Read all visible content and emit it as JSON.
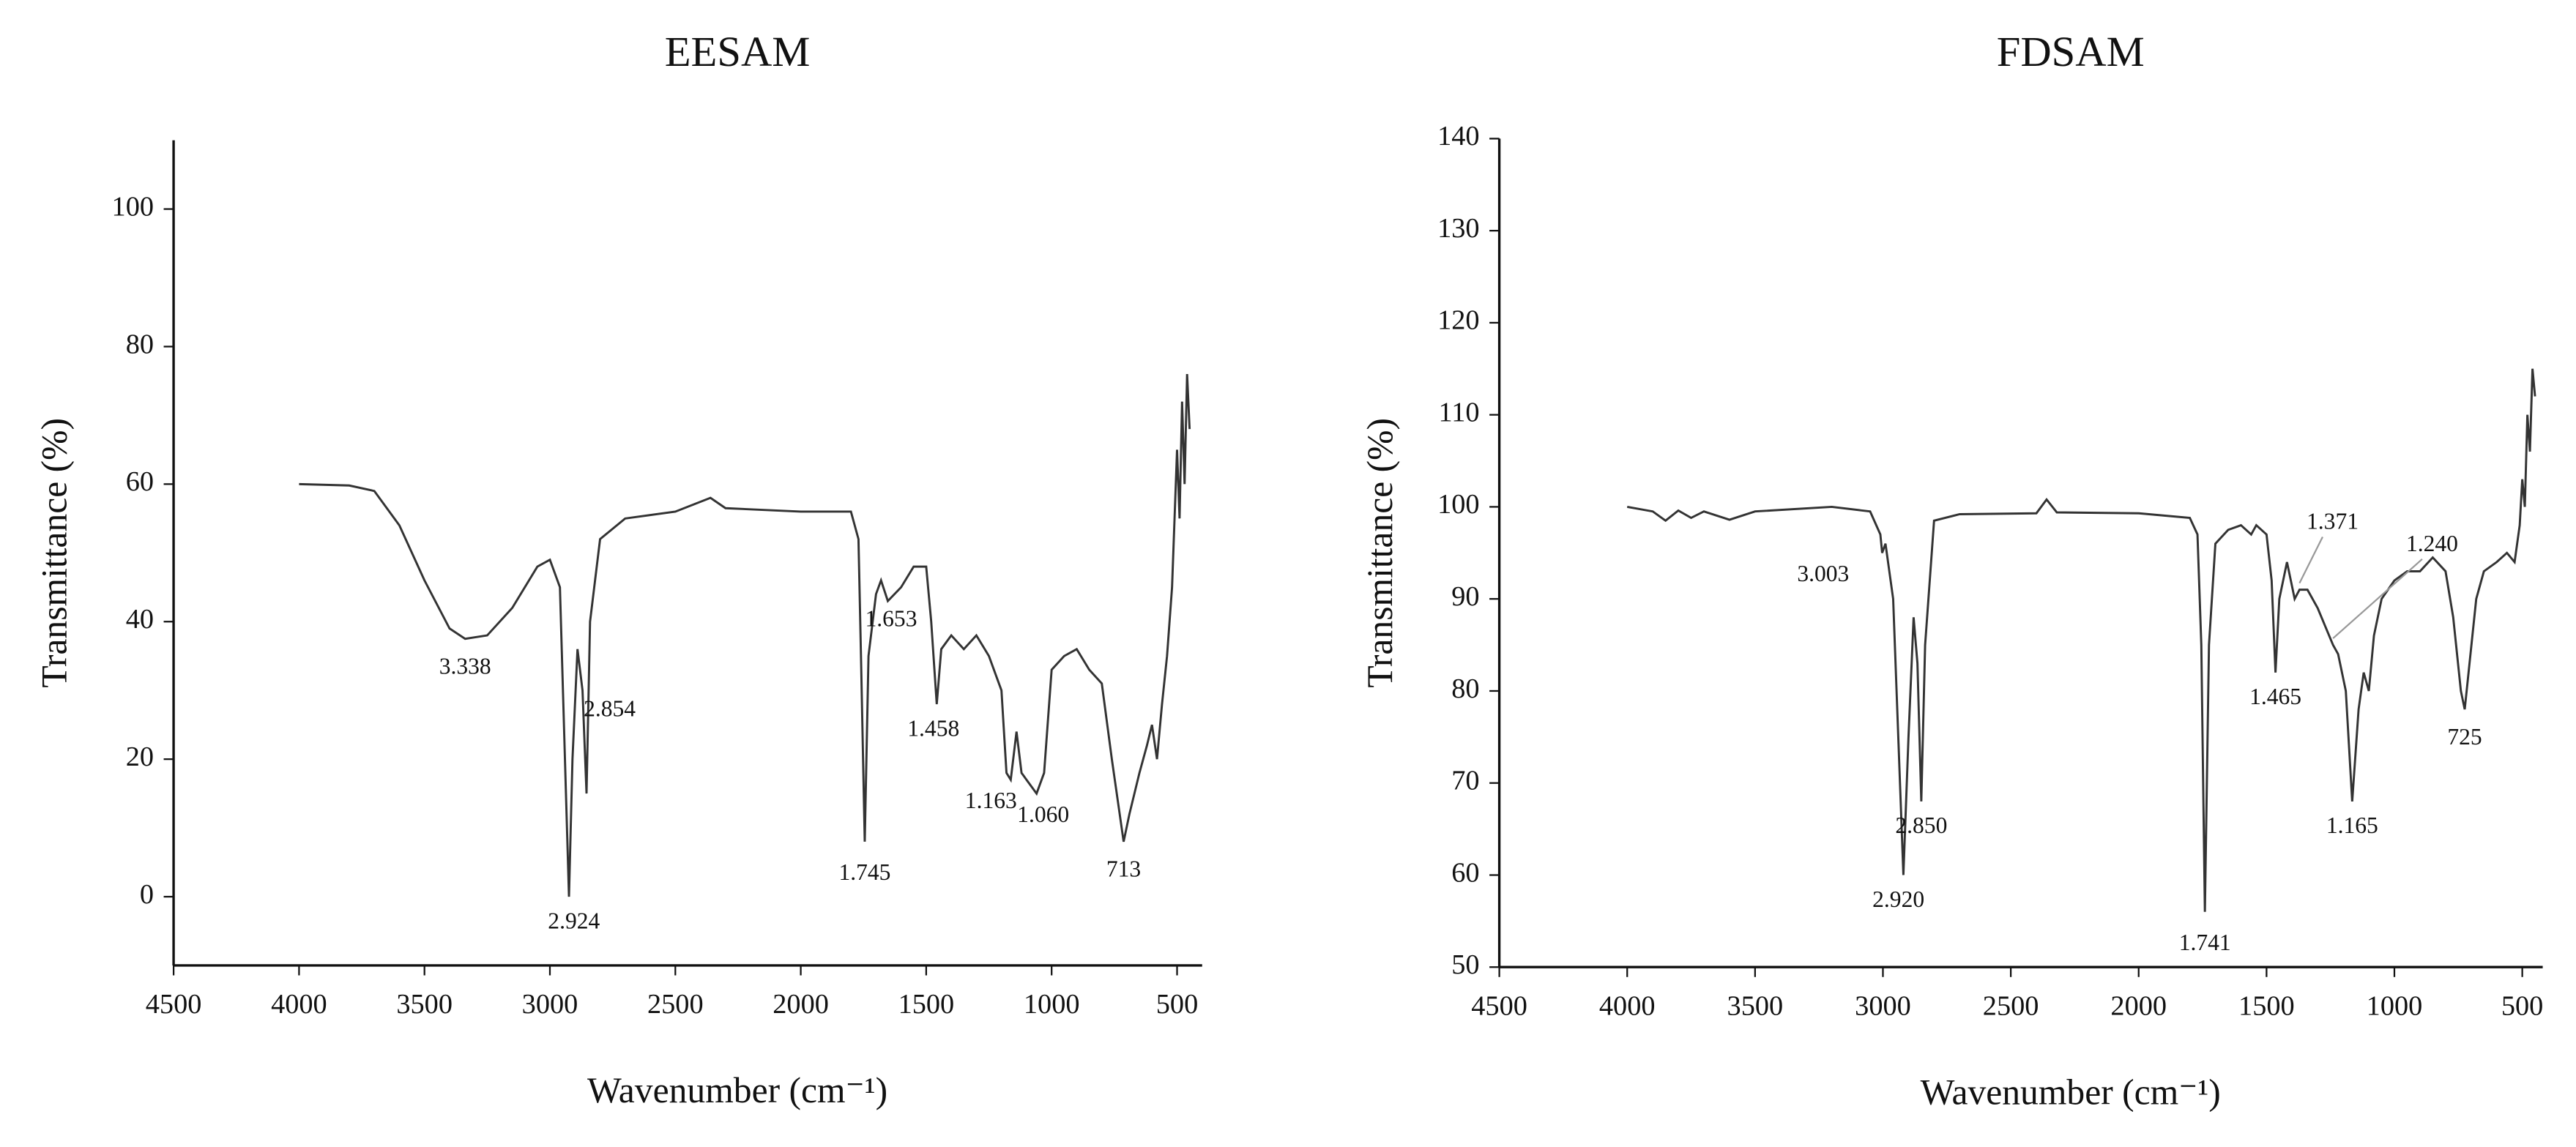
{
  "chart_data": [
    {
      "type": "line",
      "title": "EESAM",
      "x_label": "Wavenumber (cm⁻¹)",
      "y_label": "Transmittance (%)",
      "xlim": [
        4500,
        400
      ],
      "ylim": [
        -10,
        110
      ],
      "xticks": [
        4500,
        4000,
        3500,
        3000,
        2500,
        2000,
        1500,
        1000,
        500
      ],
      "yticks": [
        0,
        20,
        40,
        60,
        80,
        100
      ],
      "series": [
        {
          "name": "EESAM",
          "color": "#333333",
          "x": [
            4000,
            3800,
            3700,
            3600,
            3500,
            3400,
            3338,
            3250,
            3150,
            3050,
            3000,
            2980,
            2960,
            2940,
            2924,
            2910,
            2890,
            2870,
            2854,
            2840,
            2800,
            2700,
            2500,
            2360,
            2300,
            2000,
            1800,
            1770,
            1760,
            1745,
            1730,
            1700,
            1680,
            1653,
            1600,
            1550,
            1500,
            1480,
            1458,
            1440,
            1400,
            1350,
            1300,
            1250,
            1200,
            1180,
            1163,
            1140,
            1120,
            1100,
            1060,
            1030,
            1000,
            950,
            900,
            850,
            800,
            760,
            713,
            690,
            650,
            620,
            600,
            580,
            560,
            540,
            520,
            500,
            490,
            480,
            470,
            460,
            450
          ],
          "values": [
            60,
            59.8,
            59,
            54,
            46,
            39,
            37.5,
            38,
            42,
            48,
            49,
            47,
            45,
            20,
            0,
            20,
            36,
            30,
            15,
            40,
            52,
            55,
            56,
            58,
            56.5,
            56,
            56,
            52,
            35,
            8,
            35,
            44,
            46,
            43,
            45,
            48,
            48,
            40,
            28,
            36,
            38,
            36,
            38,
            35,
            30,
            18,
            17,
            24,
            18,
            17,
            15,
            18,
            33,
            35,
            36,
            33,
            31,
            20,
            8,
            12,
            18,
            22,
            25,
            20,
            28,
            35,
            45,
            65,
            55,
            72,
            60,
            76,
            68
          ]
        }
      ],
      "annotations": [
        {
          "label": "3.338",
          "x": 3338,
          "y": 37.5
        },
        {
          "label": "2.924",
          "x": 2924,
          "y": 0
        },
        {
          "label": "2.854",
          "x": 2854,
          "y": 15
        },
        {
          "label": "1.745",
          "x": 1745,
          "y": 8
        },
        {
          "label": "1.653",
          "x": 1653,
          "y": 43
        },
        {
          "label": "1.458",
          "x": 1458,
          "y": 28
        },
        {
          "label": "1.163",
          "x": 1163,
          "y": 17
        },
        {
          "label": "1.060",
          "x": 1060,
          "y": 15
        },
        {
          "label": "713",
          "x": 713,
          "y": 8
        }
      ]
    },
    {
      "type": "line",
      "title": "FDSAM",
      "x_label": "Wavenumber (cm⁻¹)",
      "y_label": "Transmittance (%)",
      "xlim": [
        4500,
        420
      ],
      "ylim": [
        50,
        140
      ],
      "xticks": [
        4500,
        4000,
        3500,
        3000,
        2500,
        2000,
        1500,
        1000,
        500
      ],
      "yticks": [
        50,
        60,
        70,
        80,
        90,
        100,
        110,
        120,
        130,
        140
      ],
      "series": [
        {
          "name": "FDSAM",
          "color": "#333333",
          "x": [
            4000,
            3900,
            3850,
            3800,
            3750,
            3700,
            3600,
            3500,
            3200,
            3050,
            3010,
            3003,
            2990,
            2960,
            2940,
            2920,
            2900,
            2880,
            2865,
            2850,
            2835,
            2800,
            2700,
            2400,
            2360,
            2320,
            2000,
            1800,
            1770,
            1755,
            1741,
            1725,
            1700,
            1650,
            1600,
            1560,
            1540,
            1500,
            1480,
            1465,
            1450,
            1420,
            1390,
            1371,
            1340,
            1300,
            1270,
            1240,
            1220,
            1190,
            1165,
            1140,
            1120,
            1100,
            1080,
            1050,
            1000,
            950,
            900,
            850,
            800,
            770,
            740,
            725,
            710,
            680,
            650,
            600,
            560,
            530,
            510,
            500,
            490,
            480,
            470,
            460,
            450
          ],
          "values": [
            100,
            99.5,
            98.5,
            99.6,
            98.8,
            99.5,
            98.6,
            99.5,
            100,
            99.5,
            97,
            95,
            96,
            90,
            75,
            60,
            75,
            88,
            83,
            68,
            85,
            98.5,
            99.2,
            99.3,
            100.8,
            99.4,
            99.3,
            98.8,
            97,
            85,
            56,
            85,
            96,
            97.5,
            98,
            97,
            98,
            97,
            92,
            82,
            90,
            94,
            90,
            91,
            91,
            89,
            87,
            85,
            84,
            80,
            68,
            78,
            82,
            80,
            86,
            90,
            92,
            93,
            93,
            94.5,
            93,
            88,
            80,
            78,
            82,
            90,
            93,
            94,
            95,
            94,
            98,
            103,
            100,
            110,
            106,
            115,
            112
          ]
        }
      ],
      "annotations": [
        {
          "label": "3.003",
          "x": 3003,
          "y": 95
        },
        {
          "label": "2.920",
          "x": 2920,
          "y": 60
        },
        {
          "label": "2.850",
          "x": 2850,
          "y": 68
        },
        {
          "label": "1.741",
          "x": 1741,
          "y": 56
        },
        {
          "label": "1.465",
          "x": 1465,
          "y": 82
        },
        {
          "label": "1.371",
          "x": 1371,
          "y": 91
        },
        {
          "label": "1.240",
          "x": 1240,
          "y": 85
        },
        {
          "label": "1.165",
          "x": 1165,
          "y": 68
        },
        {
          "label": "725",
          "x": 725,
          "y": 78
        }
      ]
    }
  ]
}
